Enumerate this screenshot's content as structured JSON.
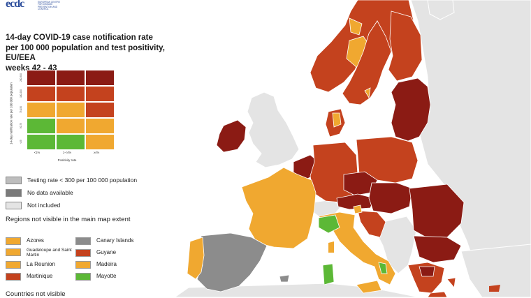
{
  "logo": {
    "mark": "ecdc",
    "org": "EUROPEAN CENTRE FOR DISEASE PREVENTION AND CONTROL",
    "icon": "ecdc-logo-icon"
  },
  "title_lines": [
    "14-day COVID-19 case notification rate",
    "per 100 000 population and test positivity, EU/EEA",
    "weeks 42 - 43"
  ],
  "matrix": {
    "y_axis_label": "14-day notification rate per 100 000 population",
    "x_axis_label": "Positivity rate",
    "x_ticks": [
      "<1%",
      "1-<4%",
      "≥4%"
    ],
    "y_ticks": [
      "200-500",
      "100-200",
      "75-150",
      "50-75",
      "<25"
    ],
    "rows": [
      [
        "#8b1b14",
        "#8b1b14",
        "#8b1b14"
      ],
      [
        "#c4421e",
        "#c4421e",
        "#c4421e"
      ],
      [
        "#f0a830",
        "#f0a830",
        "#c4421e"
      ],
      [
        "#5cb836",
        "#f0a830",
        "#f0a830"
      ],
      [
        "#5cb836",
        "#5cb836",
        "#f0a830"
      ]
    ]
  },
  "legend": [
    {
      "label": "Testing rate < 300 per 100 000 population",
      "color": "#bdbdbd"
    },
    {
      "label": "No data available",
      "color": "#7a7a7a"
    },
    {
      "label": "Not included",
      "color": "#e4e4e4"
    }
  ],
  "regions_title": "Regions not visible in the main map extent",
  "regions": [
    {
      "label": "Azores",
      "color": "#f0a830"
    },
    {
      "label": "Canary Islands",
      "color": "#8c8c8c"
    },
    {
      "label": "Guadeloupe and Saint Martin",
      "color": "#f0a830"
    },
    {
      "label": "Guyane",
      "color": "#c4421e"
    },
    {
      "label": "La Reunion",
      "color": "#f0a830"
    },
    {
      "label": "Madeira",
      "color": "#f0a830"
    },
    {
      "label": "Martinique",
      "color": "#c4421e"
    },
    {
      "label": "Mayotte",
      "color": "#5cb836"
    }
  ],
  "bottom_note": "Countries not visible",
  "colors": {
    "sea": "#ffffff",
    "not_included": "#e4e4e4",
    "dark_red": "#8b1b14",
    "red": "#c4421e",
    "orange": "#f0a830",
    "green": "#5cb836",
    "grey": "#8c8c8c",
    "border": "#ffffff"
  }
}
